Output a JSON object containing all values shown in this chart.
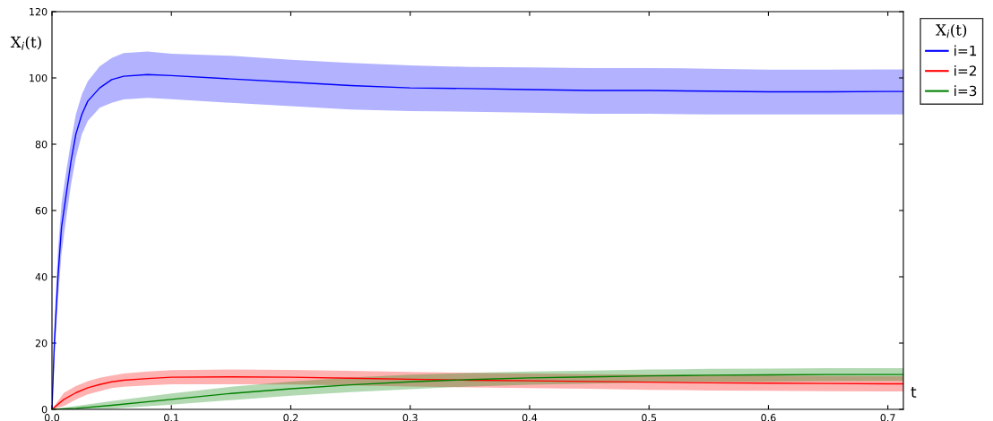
{
  "chart_data": {
    "type": "line",
    "xlabel": "t",
    "ylabel": "X$_{i}$(t)",
    "legend_title": "X$_{i}$(t)",
    "legend": "top right",
    "grid": false,
    "marker": "none",
    "line_style": "solid",
    "xlim": [
      0,
      0.713
    ],
    "ylim": [
      0,
      120
    ],
    "xticks": [
      {
        "value": 0,
        "label": "0.0"
      },
      0.1,
      0.2,
      0.3,
      0.4,
      0.5,
      0.6,
      0.7
    ],
    "yticks": [
      0,
      20,
      40,
      60,
      80,
      100,
      120
    ],
    "series": [
      {
        "name": "i=1",
        "color": "#0000ff",
        "x": [
          0,
          0.002,
          0.005,
          0.008,
          0.012,
          0.016,
          0.02,
          0.025,
          0.03,
          0.04,
          0.05,
          0.06,
          0.08,
          0.1,
          0.15,
          0.2,
          0.25,
          0.3,
          0.35,
          0.4,
          0.45,
          0.5,
          0.55,
          0.6,
          0.65,
          0.7,
          0.713
        ],
        "values": [
          0,
          20,
          40,
          55,
          65,
          75,
          83,
          89,
          93,
          97,
          99.5,
          100.5,
          101,
          100.7,
          99.7,
          98.7,
          97.7,
          97,
          96.8,
          96.5,
          96.2,
          96.2,
          96,
          95.8,
          95.8,
          95.9,
          95.9
        ],
        "upper": [
          0,
          25,
          48,
          62,
          72,
          81,
          89,
          95,
          99,
          103.5,
          106,
          107.5,
          108,
          107.3,
          106.7,
          105.5,
          104.5,
          103.8,
          103.3,
          103.2,
          103,
          103,
          102.8,
          102.5,
          102.5,
          102.6,
          102.6
        ],
        "lower": [
          0,
          15,
          33,
          47,
          58,
          68,
          76,
          83,
          87,
          91,
          92.5,
          93.5,
          94,
          93.6,
          92.5,
          91.5,
          90.5,
          90,
          89.8,
          89.5,
          89.2,
          89.2,
          89,
          89,
          89,
          89,
          89
        ]
      },
      {
        "name": "i=2",
        "color": "#ff0000",
        "x": [
          0,
          0.01,
          0.02,
          0.03,
          0.04,
          0.05,
          0.06,
          0.08,
          0.1,
          0.15,
          0.2,
          0.25,
          0.3,
          0.35,
          0.4,
          0.45,
          0.5,
          0.55,
          0.6,
          0.65,
          0.7,
          0.713
        ],
        "values": [
          0,
          3,
          5,
          6.5,
          7.5,
          8.3,
          8.8,
          9.3,
          9.7,
          9.8,
          9.7,
          9.4,
          9.1,
          8.8,
          8.6,
          8.4,
          8.2,
          8,
          7.9,
          7.8,
          7.7,
          7.7
        ],
        "upper": [
          0,
          5,
          7,
          8.5,
          9.5,
          10.2,
          10.8,
          11.4,
          11.8,
          12,
          11.9,
          11.6,
          11.3,
          11,
          10.8,
          10.6,
          10.5,
          10.3,
          10.2,
          10.1,
          10,
          10
        ],
        "lower": [
          0,
          1,
          3,
          4.5,
          5.5,
          6.4,
          6.8,
          7.2,
          7.6,
          7.6,
          7.5,
          7.2,
          6.9,
          6.6,
          6.4,
          6.2,
          5.9,
          5.7,
          5.6,
          5.5,
          5.4,
          5.4
        ]
      },
      {
        "name": "i=3",
        "color": "#008000",
        "x": [
          0,
          0.02,
          0.05,
          0.1,
          0.15,
          0.2,
          0.25,
          0.3,
          0.35,
          0.4,
          0.45,
          0.5,
          0.55,
          0.6,
          0.65,
          0.7,
          0.713
        ],
        "values": [
          0,
          0.3,
          1.2,
          3,
          4.8,
          6.2,
          7.4,
          8.3,
          9,
          9.5,
          9.8,
          10.1,
          10.3,
          10.4,
          10.5,
          10.5,
          10.5
        ],
        "upper": [
          0,
          1,
          2.5,
          4.8,
          6.8,
          8.4,
          9.6,
          10.5,
          11,
          11.4,
          11.7,
          12,
          12.2,
          12.3,
          12.4,
          12.4,
          12.4
        ],
        "lower": [
          0,
          0,
          0.2,
          1.4,
          2.8,
          4.1,
          5.2,
          6.1,
          6.9,
          7.4,
          7.8,
          8.1,
          8.3,
          8.4,
          8.5,
          8.6,
          8.6
        ]
      }
    ]
  }
}
